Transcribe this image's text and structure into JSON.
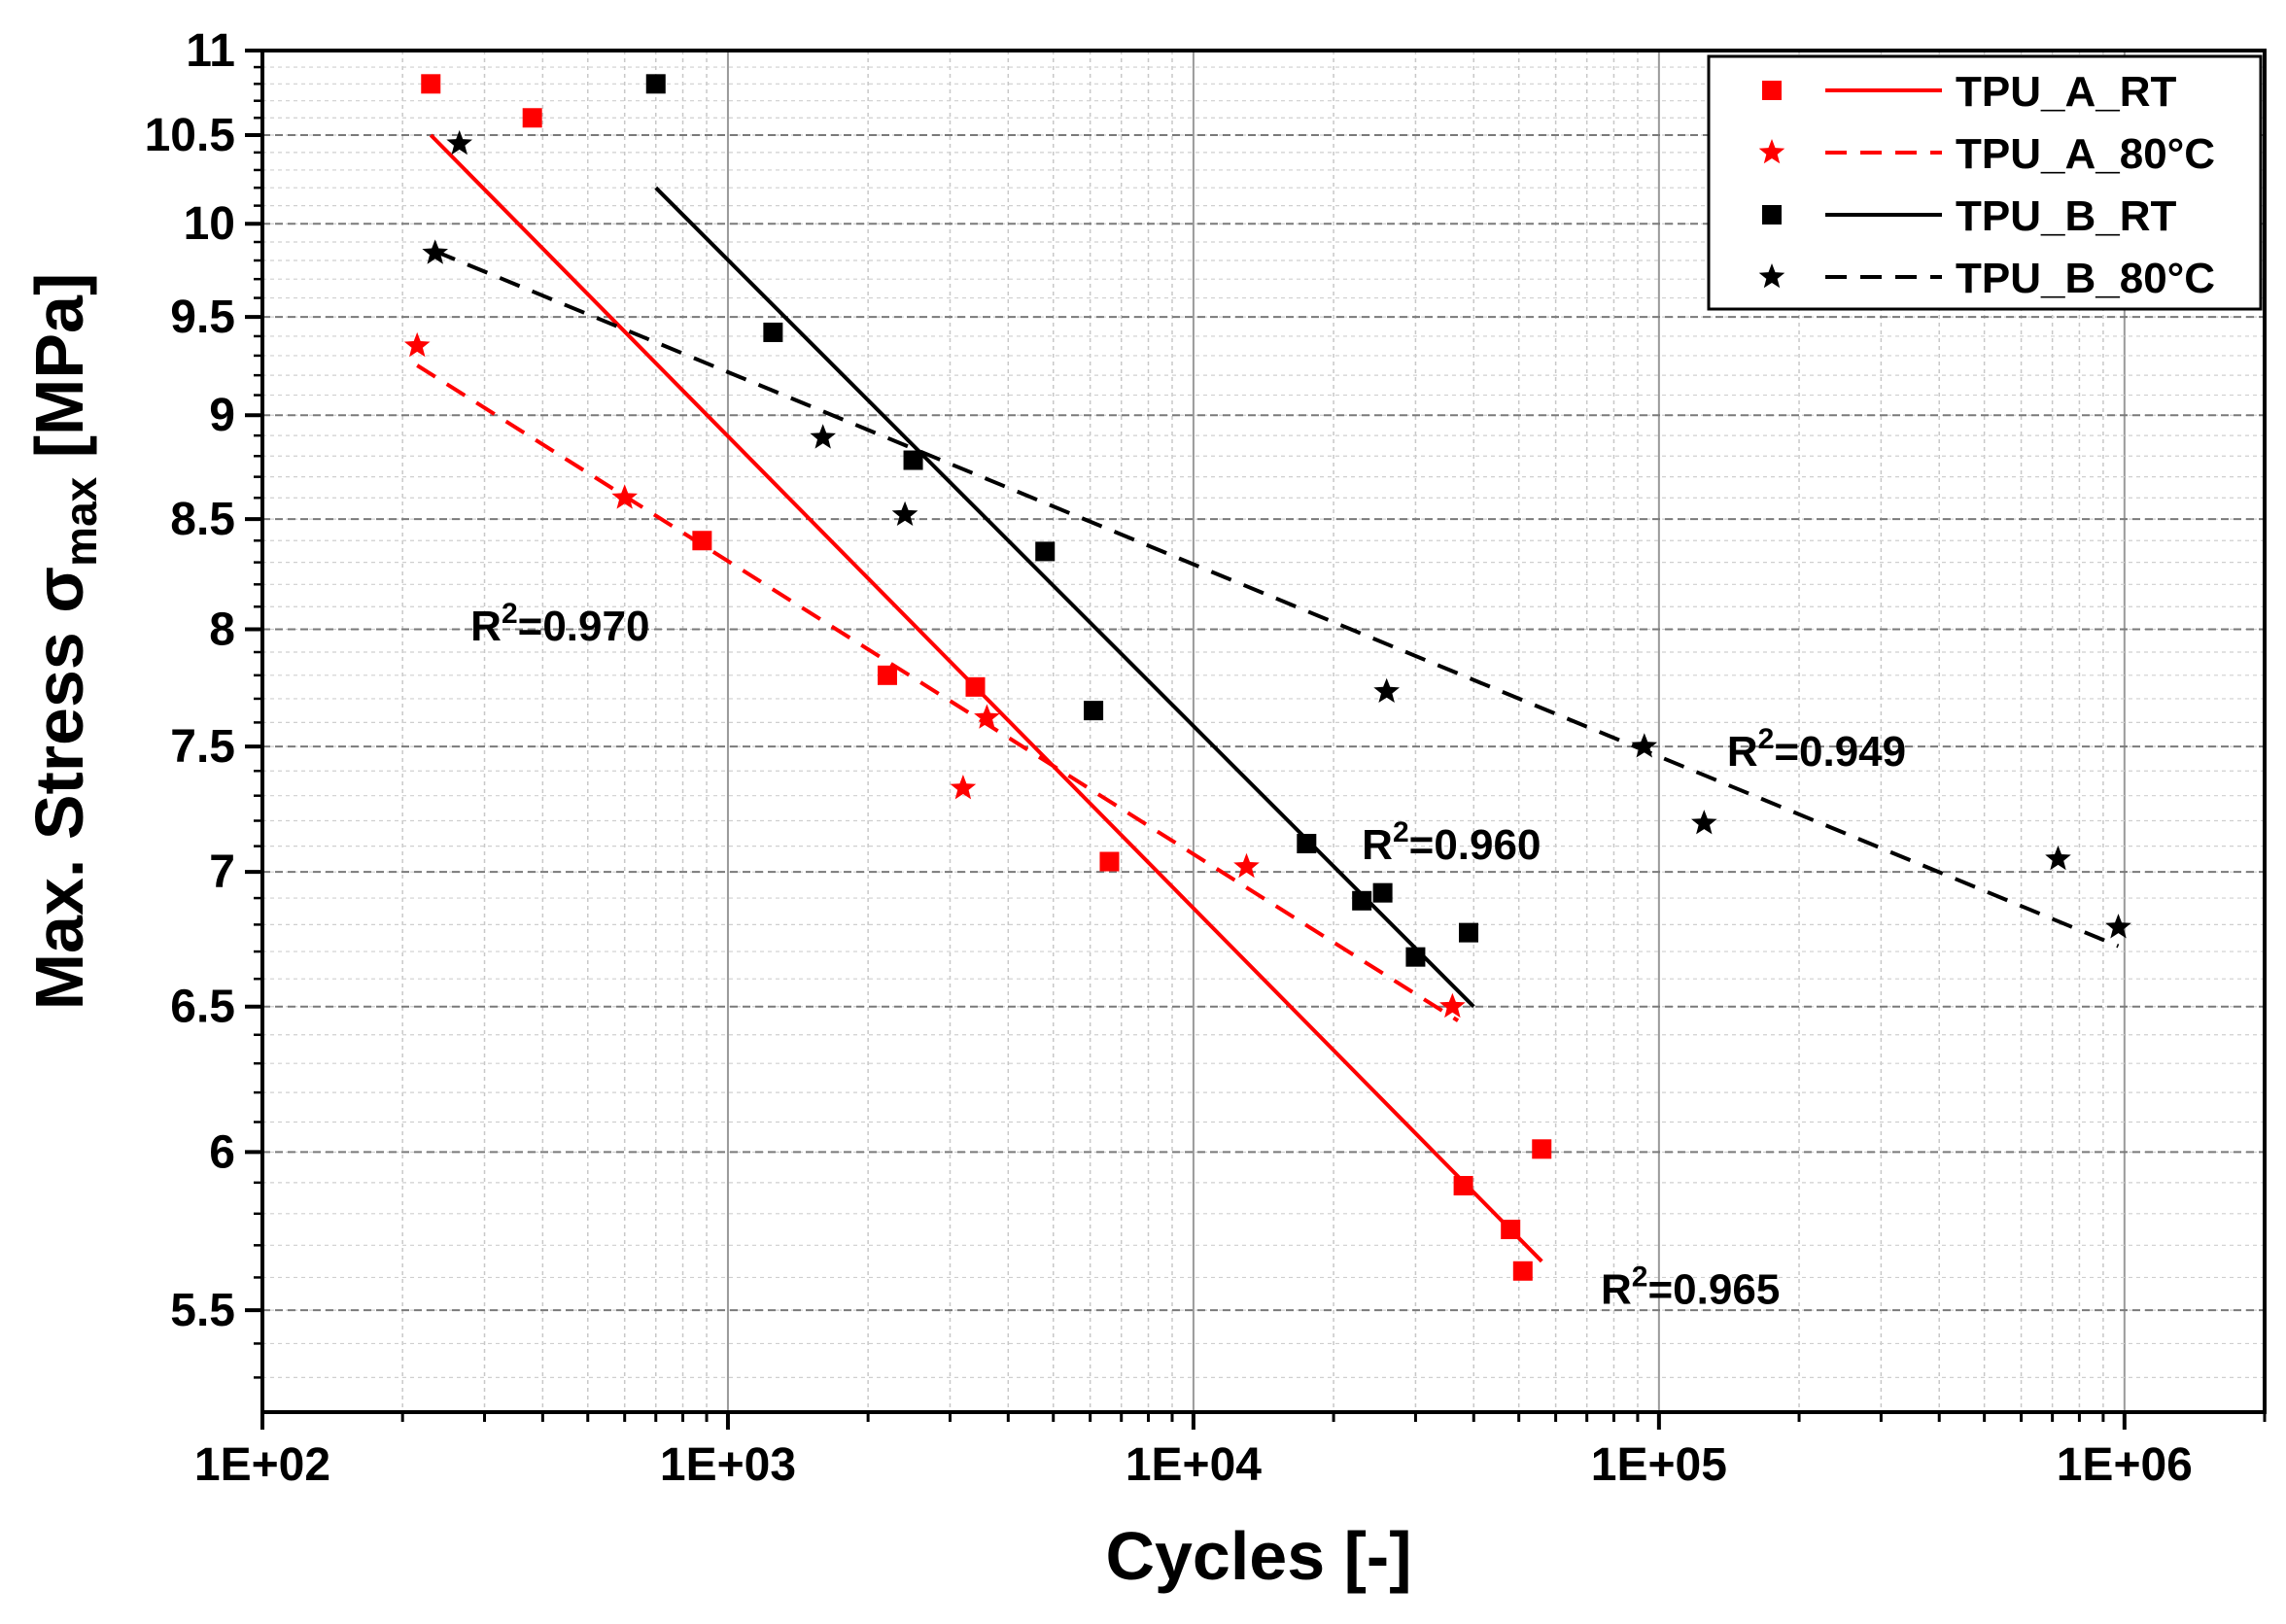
{
  "chart_data": {
    "type": "scatter",
    "title": "",
    "xlabel": "Cycles [-]",
    "ylabel_main": "Max. Stress σ",
    "ylabel_sub": "max",
    "ylabel_unit": " [MPa]",
    "xscale": "log",
    "yscale": "log",
    "xlim": [
      100,
      2000000
    ],
    "ylim": [
      5.2,
      11
    ],
    "grid": true,
    "legend_position": "top-right",
    "x_ticks": [
      {
        "value": 100,
        "label": "1E+02"
      },
      {
        "value": 1000,
        "label": "1E+03"
      },
      {
        "value": 10000,
        "label": "1E+04"
      },
      {
        "value": 100000,
        "label": "1E+05"
      },
      {
        "value": 1000000,
        "label": "1E+06"
      }
    ],
    "y_ticks": [
      {
        "value": 5.5,
        "label": "5.5"
      },
      {
        "value": 6,
        "label": "6"
      },
      {
        "value": 6.5,
        "label": "6.5"
      },
      {
        "value": 7,
        "label": "7"
      },
      {
        "value": 7.5,
        "label": "7.5"
      },
      {
        "value": 8,
        "label": "8"
      },
      {
        "value": 8.5,
        "label": "8.5"
      },
      {
        "value": 9,
        "label": "9"
      },
      {
        "value": 9.5,
        "label": "9.5"
      },
      {
        "value": 10,
        "label": "10"
      },
      {
        "value": 10.5,
        "label": "10.5"
      },
      {
        "value": 11,
        "label": "11"
      }
    ],
    "series": [
      {
        "name": "TPU_A_RT",
        "color": "#ff0000",
        "marker": "square",
        "line_style": "solid",
        "points": [
          [
            230,
            10.8
          ],
          [
            380,
            10.6
          ],
          [
            880,
            8.4
          ],
          [
            2200,
            7.8
          ],
          [
            3400,
            7.75
          ],
          [
            6600,
            7.04
          ],
          [
            38000,
            5.89
          ],
          [
            48000,
            5.75
          ],
          [
            51000,
            5.62
          ],
          [
            56000,
            6.01
          ]
        ],
        "fit": [
          [
            230,
            10.5
          ],
          [
            56000,
            5.65
          ]
        ]
      },
      {
        "name": "TPU_A_80°C",
        "color": "#ff0000",
        "marker": "star",
        "line_style": "dashed",
        "points": [
          [
            215,
            9.35
          ],
          [
            600,
            8.6
          ],
          [
            3200,
            7.33
          ],
          [
            3600,
            7.62
          ],
          [
            13000,
            7.02
          ],
          [
            36000,
            6.5
          ]
        ],
        "fit": [
          [
            215,
            9.25
          ],
          [
            37000,
            6.45
          ]
        ]
      },
      {
        "name": "TPU_B_RT",
        "color": "#000000",
        "marker": "square",
        "line_style": "solid",
        "points": [
          [
            700,
            10.8
          ],
          [
            1250,
            9.42
          ],
          [
            2500,
            8.78
          ],
          [
            4800,
            8.35
          ],
          [
            6100,
            7.65
          ],
          [
            17500,
            7.11
          ],
          [
            23000,
            6.89
          ],
          [
            25500,
            6.92
          ],
          [
            30000,
            6.68
          ],
          [
            39000,
            6.77
          ]
        ],
        "fit": [
          [
            700,
            10.2
          ],
          [
            40000,
            6.5
          ]
        ]
      },
      {
        "name": "TPU_B_80°C",
        "color": "#000000",
        "marker": "star",
        "line_style": "dashed",
        "points": [
          [
            235,
            9.84
          ],
          [
            265,
            10.45
          ],
          [
            1600,
            8.89
          ],
          [
            2400,
            8.52
          ],
          [
            26000,
            7.73
          ],
          [
            93000,
            7.5
          ],
          [
            125000,
            7.19
          ],
          [
            720000,
            7.05
          ],
          [
            970000,
            6.79
          ]
        ],
        "fit": [
          [
            235,
            9.85
          ],
          [
            970000,
            6.72
          ]
        ]
      }
    ],
    "annotations": [
      {
        "r2": "0.970",
        "x": 280,
        "y": 7.95
      },
      {
        "r2": "0.960",
        "x": 23000,
        "y": 7.05
      },
      {
        "r2": "0.949",
        "x": 140000,
        "y": 7.42
      },
      {
        "r2": "0.965",
        "x": 75000,
        "y": 5.52
      }
    ],
    "annotation_prefix": "R",
    "annotation_exponent": "2",
    "annotation_equals": "="
  }
}
